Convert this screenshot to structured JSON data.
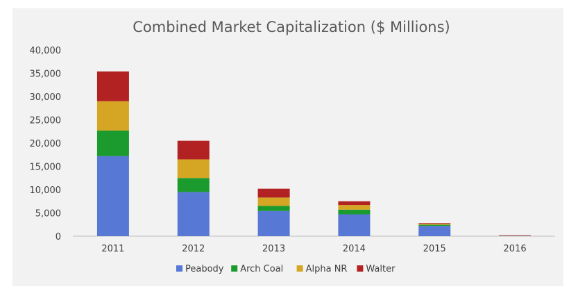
{
  "chart_data": {
    "type": "bar",
    "stacked": true,
    "title": "Combined Market Capitalization ($ Millions)",
    "xlabel": "",
    "ylabel": "",
    "categories": [
      "2011",
      "2012",
      "2013",
      "2014",
      "2015",
      "2016"
    ],
    "ylim": [
      0,
      40000
    ],
    "yticks": [
      0,
      5000,
      10000,
      15000,
      20000,
      25000,
      30000,
      35000,
      40000
    ],
    "ytick_labels": [
      "0",
      "5,000",
      "10,000",
      "15,000",
      "20,000",
      "25,000",
      "30,000",
      "35,000",
      "40,000"
    ],
    "grid": false,
    "legend_position": "bottom",
    "series": [
      {
        "name": "Peabody",
        "color": "#5778d4",
        "values": [
          17200,
          9500,
          5400,
          4700,
          2200,
          50
        ]
      },
      {
        "name": "Arch Coal",
        "color": "#1b9a2e",
        "values": [
          5500,
          3000,
          1100,
          1000,
          250,
          20
        ]
      },
      {
        "name": "Alpha NR",
        "color": "#d4a624",
        "values": [
          6300,
          4000,
          1800,
          1000,
          200,
          30
        ]
      },
      {
        "name": "Walter",
        "color": "#b22222",
        "values": [
          6400,
          4000,
          1900,
          800,
          150,
          100
        ]
      }
    ]
  }
}
